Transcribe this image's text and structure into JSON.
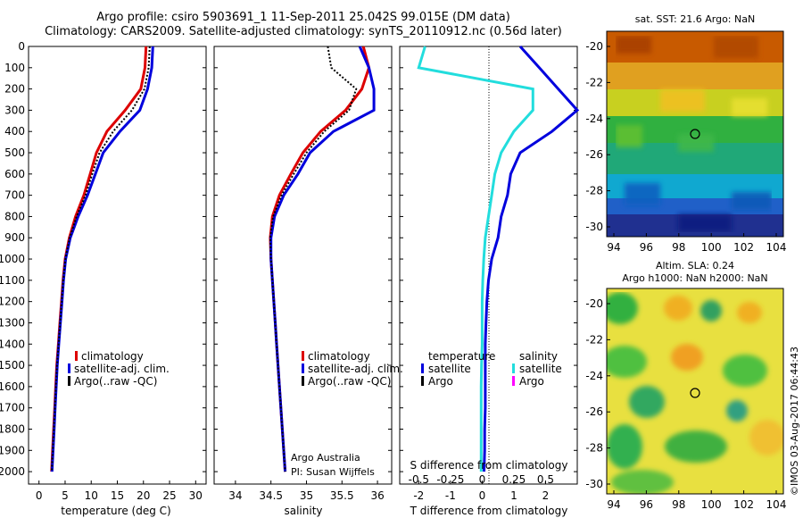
{
  "title_line1": "Argo profile: csiro 5903691_1 11-Sep-2011 25.042S 99.015E (DM data)",
  "title_line2": "Climatology: CARS2009. Satellite-adjusted climatology: synTS_20110912.nc (0.56d later)",
  "imos_stamp": "©IMOS 03-Aug-2017 06:44:43",
  "colors": {
    "climatology": "#dd0000",
    "satellite": "#0000dd",
    "argo": "#000000",
    "sal_satellite": "#22dddd",
    "sal_argo": "#ff00ff"
  },
  "depth_ticks": [
    0,
    100,
    200,
    300,
    400,
    500,
    600,
    700,
    800,
    900,
    1000,
    1100,
    1200,
    1300,
    1400,
    1500,
    1600,
    1700,
    1800,
    1900,
    2000
  ],
  "panel_temp": {
    "xlabel": "temperature (deg C)",
    "x_ticks": [
      0,
      5,
      10,
      15,
      20,
      25,
      30
    ],
    "legend": [
      "climatology",
      "satellite-adj. clim.",
      "Argo(..raw -QC)"
    ]
  },
  "panel_sal": {
    "xlabel": "salinity",
    "x_ticks": [
      "34",
      "34.5",
      "35",
      "35.5",
      "36"
    ],
    "legend": [
      "climatology",
      "satellite-adj. clim.",
      "Argo(..raw -QC)"
    ],
    "note1": "Argo Australia",
    "note2": "PI: Susan Wijffels"
  },
  "panel_diff": {
    "xlabel": "T difference from climatology",
    "top_label": "S difference from climatology",
    "bottom_ticks": [
      "-2",
      "-1",
      "0",
      "1",
      "2"
    ],
    "top_ticks": [
      "-0.5",
      "-0.25",
      "0",
      "0.25",
      "0.5"
    ],
    "legend_temp_title": "temperature",
    "legend_sal_title": "salinity",
    "legend_satellite": "satellite",
    "legend_argo": "Argo"
  },
  "map_sst": {
    "title": "sat. SST: 21.6 Argo: NaN",
    "x_ticks": [
      "94",
      "96",
      "98",
      "100",
      "102",
      "104"
    ],
    "y_ticks": [
      "-20",
      "-22",
      "-24",
      "-26",
      "-28",
      "-30"
    ]
  },
  "map_sla": {
    "title1": "Altim. SLA: 0.24",
    "title2": "Argo h1000: NaN h2000: NaN",
    "x_ticks": [
      "94",
      "96",
      "98",
      "100",
      "102",
      "104"
    ],
    "y_ticks": [
      "-20",
      "-22",
      "-24",
      "-26",
      "-28",
      "-30"
    ]
  },
  "chart_data": [
    {
      "type": "line",
      "xlabel": "temperature (deg C)",
      "ylabel": "",
      "xlim": [
        -2,
        32
      ],
      "ylim": [
        2050,
        0
      ],
      "series": [
        {
          "name": "climatology",
          "x": [
            20.5,
            20.3,
            19.5,
            16.5,
            13.0,
            11.0,
            9.8,
            8.6,
            7.0,
            5.8,
            5.0,
            4.6,
            4.3,
            4.0,
            3.7,
            3.4,
            3.2,
            3.0,
            2.8,
            2.6,
            2.4
          ],
          "y": [
            0,
            100,
            200,
            300,
            400,
            500,
            600,
            700,
            800,
            900,
            1000,
            1100,
            1200,
            1300,
            1400,
            1500,
            1600,
            1700,
            1800,
            1900,
            2000
          ]
        },
        {
          "name": "satellite-adj. clim.",
          "x": [
            21.8,
            21.6,
            20.8,
            19.3,
            15.5,
            12.3,
            10.8,
            9.3,
            7.5,
            6.0,
            5.1,
            4.7,
            4.4,
            4.1,
            3.8,
            3.5,
            3.3,
            3.1,
            2.9,
            2.7,
            2.5
          ],
          "y": [
            0,
            100,
            200,
            300,
            400,
            500,
            600,
            700,
            800,
            900,
            1000,
            1100,
            1200,
            1300,
            1400,
            1500,
            1600,
            1700,
            1800,
            1900,
            2000
          ]
        },
        {
          "name": "Argo(..raw -QC)",
          "x": [
            21.2,
            21.0,
            20.2,
            17.8,
            14.2,
            11.6,
            10.2,
            8.9,
            7.2,
            5.9,
            5.05,
            4.65,
            4.35,
            4.05,
            3.75,
            3.45,
            3.25,
            3.05,
            2.85,
            2.65,
            2.45
          ],
          "y": [
            0,
            100,
            200,
            300,
            400,
            500,
            600,
            700,
            800,
            900,
            1000,
            1100,
            1200,
            1300,
            1400,
            1500,
            1600,
            1700,
            1800,
            1900,
            2000
          ]
        }
      ]
    },
    {
      "type": "line",
      "xlabel": "salinity",
      "ylabel": "",
      "xlim": [
        33.7,
        36.2
      ],
      "ylim": [
        2050,
        0
      ],
      "series": [
        {
          "name": "climatology",
          "x": [
            35.8,
            35.88,
            35.78,
            35.55,
            35.2,
            34.95,
            34.78,
            34.62,
            34.52,
            34.49,
            34.5,
            34.52,
            34.54,
            34.56,
            34.58,
            34.6,
            34.62,
            34.64,
            34.66,
            34.68,
            34.7
          ],
          "y": [
            0,
            100,
            200,
            300,
            400,
            500,
            600,
            700,
            800,
            900,
            1000,
            1100,
            1200,
            1300,
            1400,
            1500,
            1600,
            1700,
            1800,
            1900,
            2000
          ]
        },
        {
          "name": "satellite-adj. clim.",
          "x": [
            35.75,
            35.88,
            35.95,
            35.95,
            35.38,
            35.05,
            34.88,
            34.68,
            34.55,
            34.5,
            34.5,
            34.52,
            34.54,
            34.56,
            34.58,
            34.6,
            34.62,
            34.64,
            34.66,
            34.68,
            34.7
          ],
          "y": [
            0,
            100,
            200,
            300,
            400,
            500,
            600,
            700,
            800,
            900,
            1000,
            1100,
            1200,
            1300,
            1400,
            1500,
            1600,
            1700,
            1800,
            1900,
            2000
          ]
        },
        {
          "name": "Argo(..raw -QC)",
          "x": [
            35.3,
            35.35,
            35.7,
            35.6,
            35.25,
            35.0,
            34.82,
            34.65,
            34.53,
            34.49,
            34.5,
            34.52,
            34.54,
            34.56,
            34.58,
            34.6,
            34.62,
            34.64,
            34.66,
            34.68,
            34.7
          ],
          "y": [
            0,
            100,
            200,
            300,
            400,
            500,
            600,
            700,
            800,
            900,
            1000,
            1100,
            1200,
            1300,
            1400,
            1500,
            1600,
            1700,
            1800,
            1900,
            2000
          ]
        }
      ]
    },
    {
      "type": "line",
      "xlabel": "T difference from climatology",
      "ylabel": "",
      "xlim": [
        -2.6,
        3.0
      ],
      "ylim": [
        2050,
        0
      ],
      "series": [
        {
          "name": "satellite (temperature)",
          "x": [
            1.2,
            1.8,
            2.4,
            3.0,
            2.2,
            1.2,
            0.9,
            0.8,
            0.6,
            0.5,
            0.3,
            0.2,
            0.15,
            0.12,
            0.1,
            0.1,
            0.1,
            0.1,
            0.08,
            0.08,
            0.06
          ],
          "y": [
            0,
            100,
            200,
            300,
            400,
            500,
            600,
            700,
            800,
            900,
            1000,
            1100,
            1200,
            1300,
            1400,
            1500,
            1600,
            1700,
            1800,
            1900,
            2000
          ]
        },
        {
          "name": "satellite (salinity)",
          "x": [
            -1.8,
            -2.0,
            1.6,
            1.6,
            1.0,
            0.6,
            0.4,
            0.3,
            0.2,
            0.1,
            0.05,
            0.02,
            0.0,
            0.0,
            0.0,
            -0.02,
            -0.03,
            -0.03,
            -0.03,
            -0.03,
            -0.03
          ],
          "y": [
            0,
            100,
            200,
            300,
            400,
            500,
            600,
            700,
            800,
            900,
            1000,
            1100,
            1200,
            1300,
            1400,
            1500,
            1600,
            1700,
            1800,
            1900,
            2000
          ]
        }
      ]
    }
  ]
}
